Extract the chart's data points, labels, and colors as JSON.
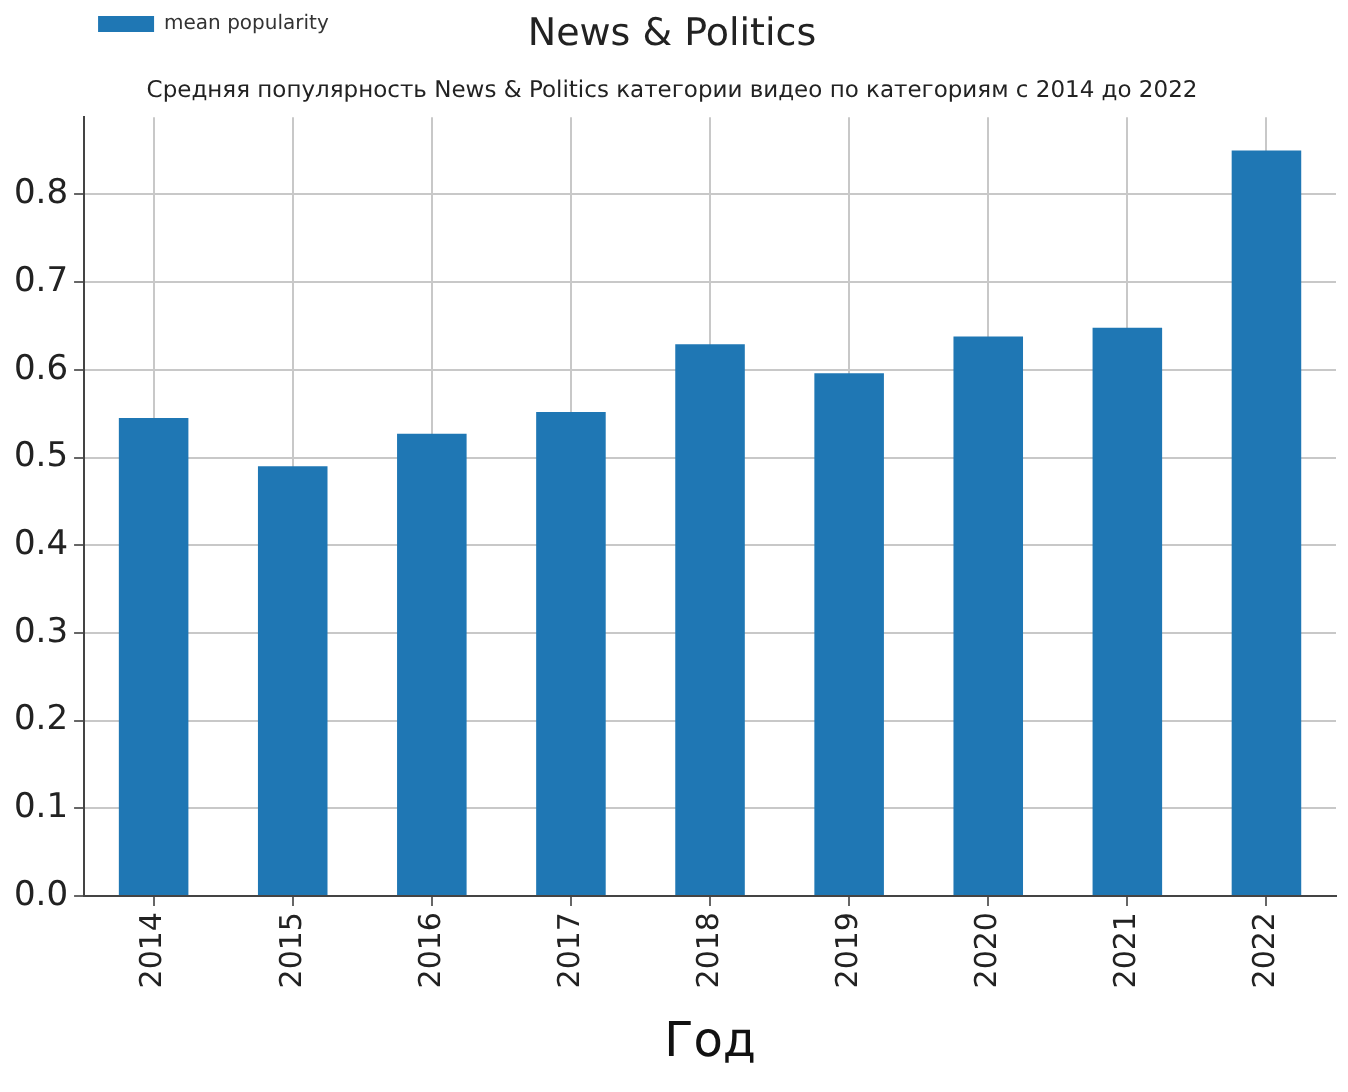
{
  "chart_data": {
    "type": "bar",
    "title": "News & Politics",
    "subtitle": "Средняя популярность News & Politics категории видео по категориям с 2014 до 2022",
    "xlabel": "Год",
    "categories": [
      "2014",
      "2015",
      "2016",
      "2017",
      "2018",
      "2019",
      "2020",
      "2021",
      "2022"
    ],
    "series": [
      {
        "name": "mean popularity",
        "color": "#1f77b4",
        "values": [
          0.545,
          0.49,
          0.527,
          0.552,
          0.629,
          0.596,
          0.638,
          0.648,
          0.85
        ]
      }
    ],
    "ylim": [
      0,
      0.888
    ],
    "yticks": [
      {
        "value": 0,
        "label": "0.0"
      },
      0.1,
      0.2,
      0.3,
      0.4,
      0.5,
      0.6,
      0.7,
      0.8
    ],
    "grid": true,
    "legend": "top left"
  }
}
